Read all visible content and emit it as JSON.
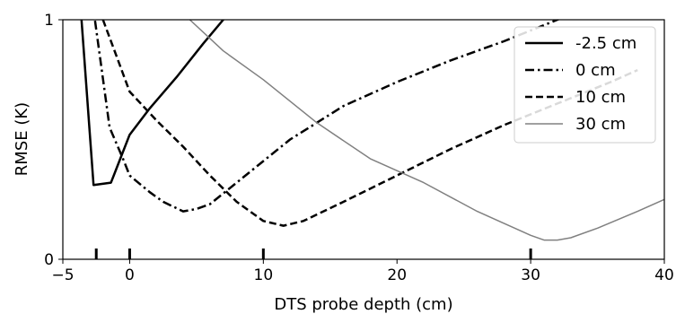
{
  "chart_data": {
    "type": "line",
    "title": "",
    "xlabel": "DTS probe depth (cm)",
    "ylabel": "RMSE (K)",
    "xlim": [
      -5,
      40
    ],
    "ylim": [
      0,
      1
    ],
    "x_ticks": [
      -5,
      0,
      10,
      20,
      30,
      40
    ],
    "x_tick_labels": [
      "−5",
      "0",
      "10",
      "20",
      "30",
      "40"
    ],
    "y_ticks": [
      0,
      1
    ],
    "y_tick_labels": [
      "0",
      "1"
    ],
    "grid": false,
    "legend_position": "top-right",
    "probe_markers": [
      -2.5,
      0,
      10,
      30
    ],
    "series": [
      {
        "name": "-2.5 cm",
        "color": "#000000",
        "style": "solid",
        "width": 2.5,
        "points": [
          [
            -5,
            1.2
          ],
          [
            -3.6,
            1.0
          ],
          [
            -2.7,
            0.31
          ],
          [
            -1.4,
            0.32
          ],
          [
            0,
            0.52
          ],
          [
            1.5,
            0.63
          ],
          [
            3.5,
            0.76
          ],
          [
            5.5,
            0.9
          ],
          [
            7,
            1.0
          ],
          [
            8,
            1.07
          ]
        ]
      },
      {
        "name": "0 cm",
        "color": "#000000",
        "style": "dashdot",
        "width": 2.5,
        "points": [
          [
            -4.5,
            1.2
          ],
          [
            -2.6,
            1.0
          ],
          [
            -1.5,
            0.55
          ],
          [
            -0.5,
            0.42
          ],
          [
            0,
            0.35
          ],
          [
            1.5,
            0.28
          ],
          [
            2.5,
            0.24
          ],
          [
            4,
            0.2
          ],
          [
            5,
            0.21
          ],
          [
            6,
            0.23
          ],
          [
            8,
            0.32
          ],
          [
            12,
            0.5
          ],
          [
            16,
            0.64
          ],
          [
            20,
            0.74
          ],
          [
            24,
            0.83
          ],
          [
            28,
            0.91
          ],
          [
            32,
            1.0
          ],
          [
            34,
            1.05
          ]
        ]
      },
      {
        "name": "10 cm",
        "color": "#000000",
        "style": "dashed",
        "width": 2.5,
        "points": [
          [
            -2,
            1.0
          ],
          [
            -1,
            0.85
          ],
          [
            0,
            0.7
          ],
          [
            2,
            0.58
          ],
          [
            4,
            0.47
          ],
          [
            6,
            0.35
          ],
          [
            8,
            0.24
          ],
          [
            10,
            0.16
          ],
          [
            11.5,
            0.14
          ],
          [
            13,
            0.16
          ],
          [
            16,
            0.24
          ],
          [
            20,
            0.35
          ],
          [
            24,
            0.46
          ],
          [
            28,
            0.56
          ],
          [
            32,
            0.65
          ],
          [
            36,
            0.74
          ],
          [
            38,
            0.79
          ]
        ]
      },
      {
        "name": "30 cm",
        "color": "#808080",
        "style": "solid",
        "width": 1.5,
        "points": [
          [
            4.5,
            1.0
          ],
          [
            7,
            0.87
          ],
          [
            10,
            0.75
          ],
          [
            14,
            0.57
          ],
          [
            18,
            0.42
          ],
          [
            22,
            0.32
          ],
          [
            26,
            0.2
          ],
          [
            28,
            0.15
          ],
          [
            30,
            0.1
          ],
          [
            31,
            0.08
          ],
          [
            32,
            0.08
          ],
          [
            33,
            0.09
          ],
          [
            35,
            0.13
          ],
          [
            38,
            0.2
          ],
          [
            40,
            0.25
          ]
        ]
      }
    ]
  }
}
